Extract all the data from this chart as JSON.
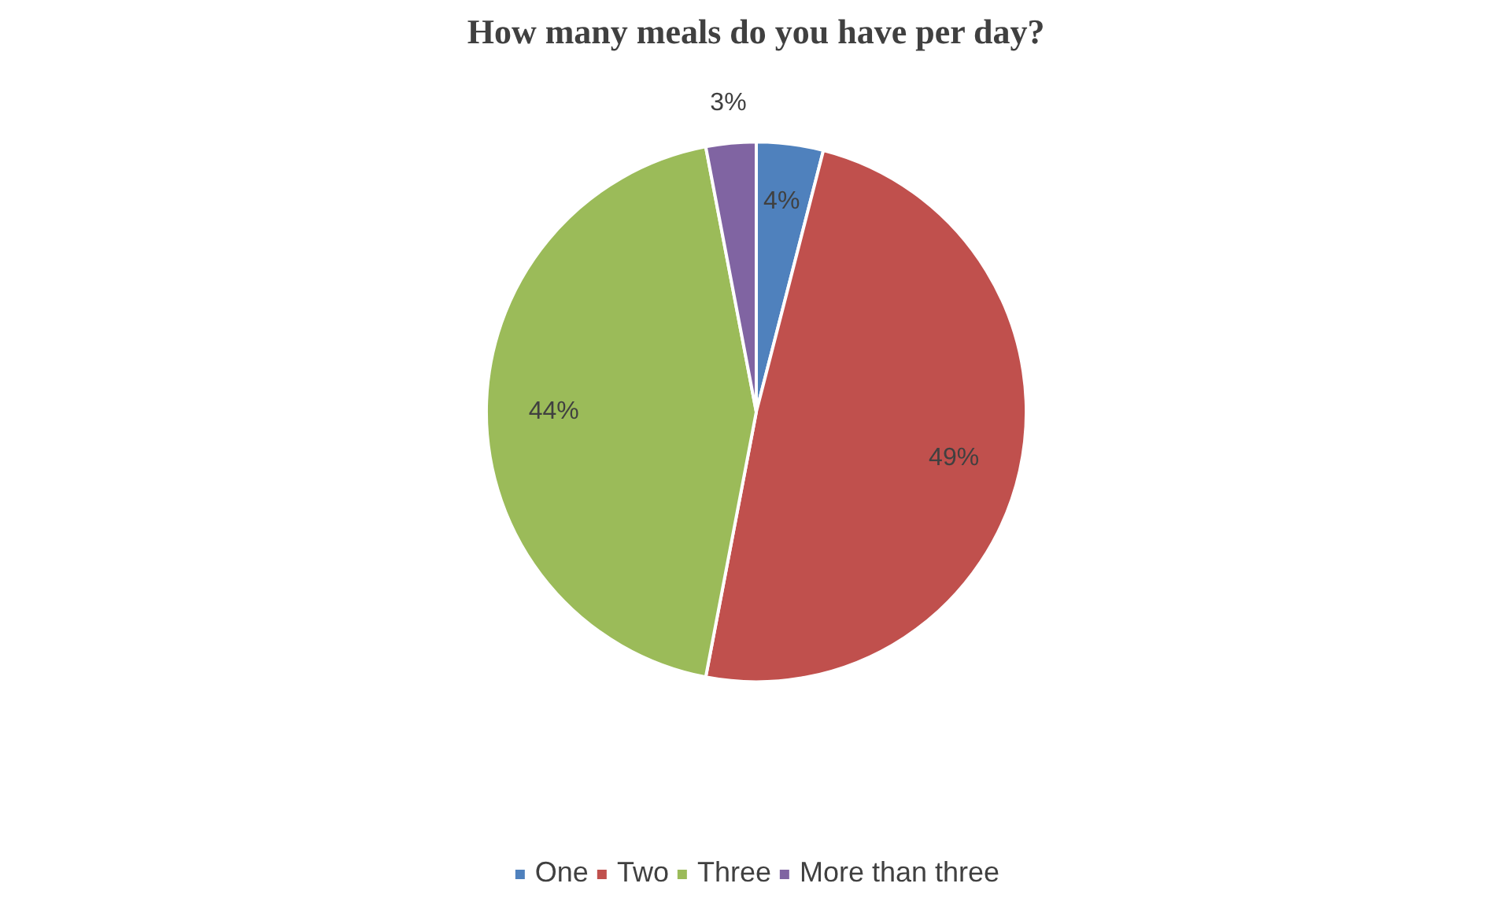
{
  "chart_data": {
    "type": "pie",
    "title": "How many meals do you have per day?",
    "categories": [
      "One",
      "Two",
      "Three",
      "More than three"
    ],
    "values": [
      4,
      49,
      44,
      3
    ],
    "colors": [
      "#4f81bd",
      "#c0504d",
      "#9bbb59",
      "#8064a2"
    ],
    "value_labels": [
      "4%",
      "49%",
      "44%",
      "3%"
    ],
    "legend": "bottom"
  }
}
